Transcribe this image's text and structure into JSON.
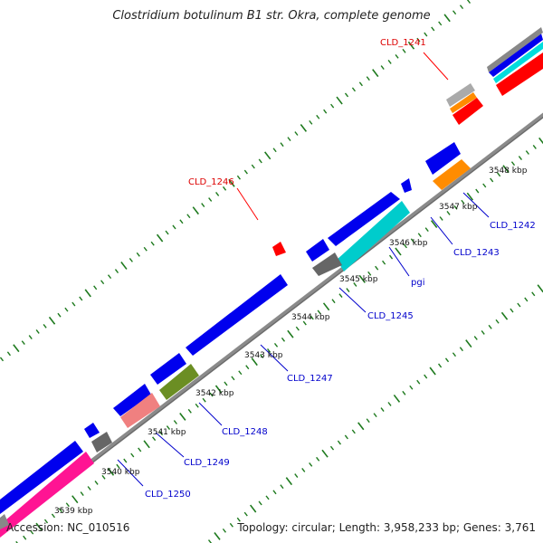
{
  "title": "Clostridium botulinum B1 str. Okra, complete genome",
  "footer": {
    "accession": "Accession: NC_010516",
    "summary": "Topology: circular; Length: 3,958,233 bp; Genes: 3,761"
  },
  "colors": {
    "backbone": "#888888",
    "tick": "#1e7a1e",
    "blue": "#0000ee",
    "red": "#ff0000",
    "label_blue": "#0000cc",
    "label_red": "#dd0000"
  },
  "kbp_labels": [
    "3539 kbp",
    "3540 kbp",
    "3541 kbp",
    "3542 kbp",
    "3543 kbp",
    "3544 kbp",
    "3545 kbp",
    "3546 kbp",
    "3547 kbp",
    "3548 kbp"
  ],
  "gene_labels": [
    "CLD_1241",
    "CLD_1242",
    "CLD_1243",
    "pgi",
    "CLD_1245",
    "CLD_1246",
    "CLD_1247",
    "CLD_1248",
    "CLD_1249",
    "CLD_1250"
  ]
}
